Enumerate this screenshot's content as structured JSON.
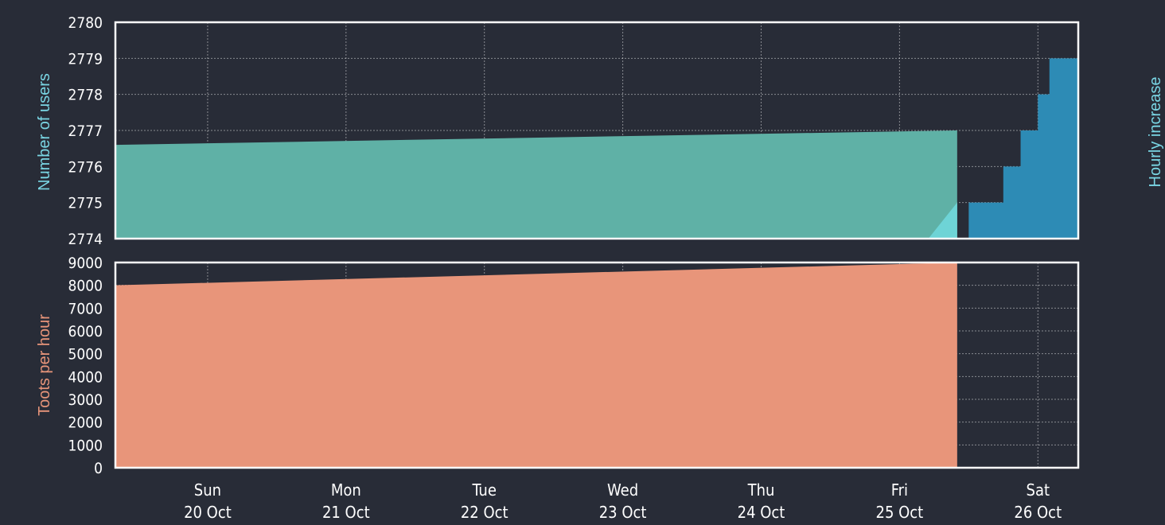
{
  "colors": {
    "background": "#282c37",
    "users_area": "#5fb1a6",
    "users_cyan": "#6ed4d6",
    "hourly_increase": "#2d8bb5",
    "toots_area": "#e8957a",
    "users_label": "#7ad6e4",
    "toots_label": "#e8957a",
    "hourly_label": "#7ad6e4"
  },
  "chart_data": [
    {
      "type": "area",
      "ylabel": "Number of users",
      "y2label": "Hourly increase",
      "ylim": [
        2774,
        2780
      ],
      "yticks": [
        2774,
        2775,
        2776,
        2777,
        2778,
        2779,
        2780
      ],
      "grid": true,
      "x_range": [
        "2024-10-19T08:00",
        "2024-10-26T07:00"
      ],
      "series": [
        {
          "name": "Number of users",
          "x": [
            "2024-10-19T08:00",
            "2024-10-25T10:00"
          ],
          "values": [
            2776.6,
            2777.0
          ]
        },
        {
          "name": "Hourly increase",
          "x": [
            "2024-10-25T11:00",
            "2024-10-25T12:00",
            "2024-10-25T15:00",
            "2024-10-25T18:00",
            "2024-10-25T21:00",
            "2024-10-26T00:00",
            "2024-10-26T02:00",
            "2024-10-26T07:00"
          ],
          "values": [
            2774.0,
            2775.0,
            2775.0,
            2776.0,
            2777.0,
            2778.0,
            2779.0,
            2779.0
          ]
        }
      ]
    },
    {
      "type": "area",
      "ylabel": "Toots per hour",
      "ylim": [
        0,
        9000
      ],
      "yticks": [
        0,
        1000,
        2000,
        3000,
        4000,
        5000,
        6000,
        7000,
        8000,
        9000
      ],
      "grid": true,
      "x_range": [
        "2024-10-19T08:00",
        "2024-10-26T07:00"
      ],
      "series": [
        {
          "name": "Toots per hour",
          "x": [
            "2024-10-19T08:00",
            "2024-10-25T10:00"
          ],
          "values": [
            8000,
            9100
          ]
        }
      ]
    }
  ],
  "xaxis": {
    "ticks": [
      {
        "day": "Sun",
        "date": "20 Oct",
        "at": "2024-10-20T00:00"
      },
      {
        "day": "Mon",
        "date": "21 Oct",
        "at": "2024-10-21T00:00"
      },
      {
        "day": "Tue",
        "date": "22 Oct",
        "at": "2024-10-22T00:00"
      },
      {
        "day": "Wed",
        "date": "23 Oct",
        "at": "2024-10-23T00:00"
      },
      {
        "day": "Thu",
        "date": "24 Oct",
        "at": "2024-10-24T00:00"
      },
      {
        "day": "Fri",
        "date": "25 Oct",
        "at": "2024-10-25T00:00"
      },
      {
        "day": "Sat",
        "date": "26 Oct",
        "at": "2024-10-26T00:00"
      }
    ]
  }
}
